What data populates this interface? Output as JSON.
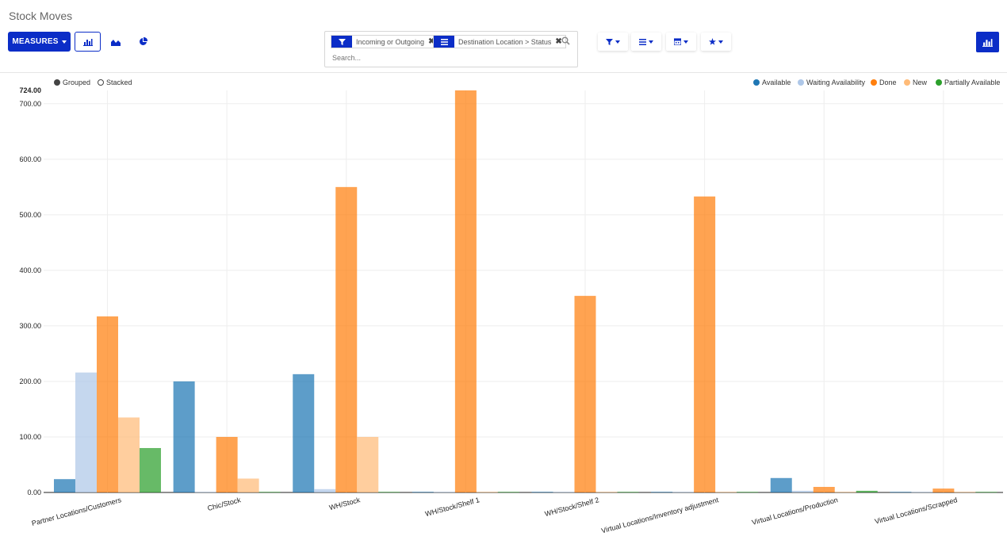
{
  "breadcrumb": "Stock Moves",
  "toolbar": {
    "measures_label": "MEASURES"
  },
  "search": {
    "facets": [
      {
        "label": "Incoming or Outgoing",
        "icon": "filter-icon"
      },
      {
        "label": "Destination Location > Status",
        "icon": "group-by-icon"
      }
    ],
    "placeholder": "Search..."
  },
  "chart_toggles": {
    "grouped": "Grouped",
    "stacked": "Stacked"
  },
  "colors": {
    "accent": "#0b2dc7",
    "available": "#1f77b4",
    "waiting": "#aec7e8",
    "done": "#ff7f0e",
    "new": "#ffbb78",
    "partial": "#2ca02c"
  },
  "chart_data": {
    "type": "bar",
    "categories": [
      "Partner Locations/Customers",
      "Chic/Stock",
      "WH/Stock",
      "WH/Stock/Shelf 1",
      "WH/Stock/Shelf 2",
      "Virtual Locations/Inventory adjustment",
      "Virtual Locations/Production",
      "Virtual Locations/Scrapped"
    ],
    "series": [
      {
        "name": "Available",
        "values": [
          24,
          200,
          213,
          1,
          1,
          1,
          26,
          1
        ]
      },
      {
        "name": "Waiting Availability",
        "values": [
          216,
          1,
          6,
          1,
          1,
          1,
          3,
          1
        ]
      },
      {
        "name": "Done",
        "values": [
          317,
          100,
          550,
          724,
          354,
          533,
          10,
          7
        ]
      },
      {
        "name": "New",
        "values": [
          135,
          25,
          100,
          1,
          1,
          1,
          1,
          1
        ]
      },
      {
        "name": "Partially Available",
        "values": [
          80,
          1,
          1,
          1,
          1,
          1,
          3,
          1
        ]
      }
    ],
    "ylim": [
      0,
      724
    ],
    "yticks": [
      "0.00",
      "100.00",
      "200.00",
      "300.00",
      "400.00",
      "500.00",
      "600.00",
      "700.00"
    ],
    "ymax_label": "724.00",
    "grid": true,
    "legend_position": "top-right"
  }
}
